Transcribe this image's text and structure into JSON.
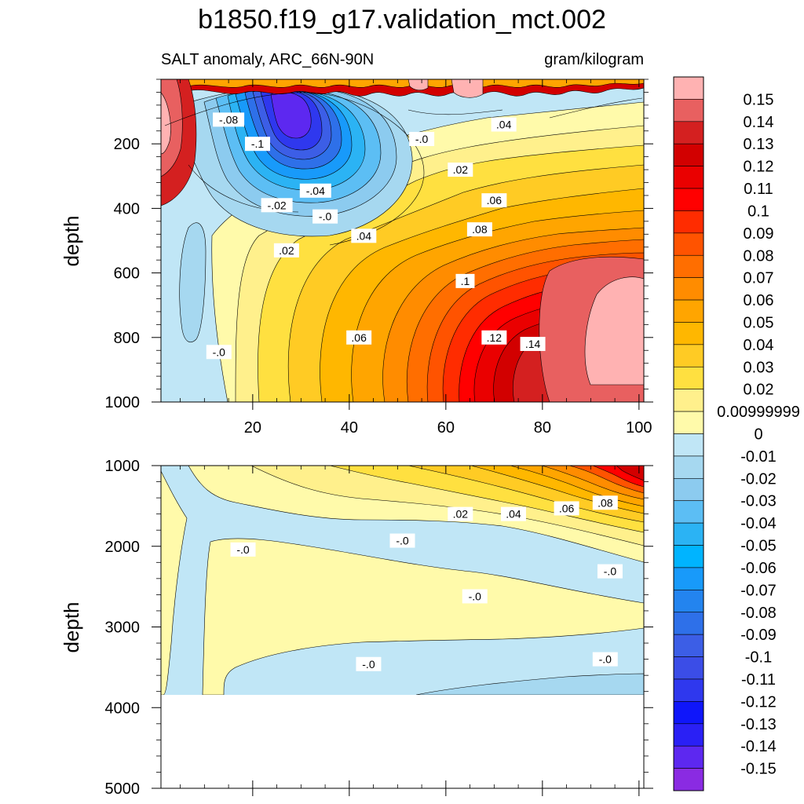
{
  "chart_data": {
    "type": "contour",
    "title": "b1850.f19_g17.validation_mct.002",
    "subtitle_left": "SALT anomaly, ARC_66N-90N",
    "subtitle_right": "gram/kilogram",
    "panels": [
      {
        "name": "upper",
        "ylabel": "depth",
        "xlim": [
          1,
          101
        ],
        "ylim": [
          1000,
          0
        ],
        "xticks": [
          20,
          40,
          60,
          80,
          100
        ],
        "xtick_labels": [
          "20",
          "40",
          "60",
          "80",
          "100"
        ],
        "yticks": [
          200,
          400,
          600,
          800,
          1000
        ],
        "ytick_labels": [
          "200",
          "400",
          "600",
          "800",
          "1000"
        ],
        "contour_labels": [
          {
            "text": "-.08",
            "x": 15,
            "y": 125
          },
          {
            "text": "-.1",
            "x": 21,
            "y": 200
          },
          {
            "text": "-.0",
            "x": 55,
            "y": 185
          },
          {
            "text": ".04",
            "x": 72,
            "y": 140
          },
          {
            "text": ".02",
            "x": 63,
            "y": 280
          },
          {
            "text": "-.04",
            "x": 33,
            "y": 345
          },
          {
            "text": "-.02",
            "x": 25,
            "y": 390
          },
          {
            "text": ".06",
            "x": 70,
            "y": 375
          },
          {
            "text": "-.0",
            "x": 35,
            "y": 425
          },
          {
            "text": ".08",
            "x": 67,
            "y": 465
          },
          {
            "text": ".04",
            "x": 43,
            "y": 485
          },
          {
            "text": ".02",
            "x": 27,
            "y": 530
          },
          {
            "text": ".1",
            "x": 64,
            "y": 625
          },
          {
            "text": ".06",
            "x": 42,
            "y": 800
          },
          {
            "text": ".12",
            "x": 70,
            "y": 800
          },
          {
            "text": ".14",
            "x": 78,
            "y": 820
          },
          {
            "text": "-.0",
            "x": 13,
            "y": 845
          }
        ]
      },
      {
        "name": "lower",
        "ylabel": "depth",
        "xlim": [
          1,
          101
        ],
        "ylim": [
          5000,
          1000
        ],
        "yticks": [
          1000,
          2000,
          3000,
          4000,
          5000
        ],
        "ytick_labels": [
          "1000",
          "2000",
          "3000",
          "4000",
          "5000"
        ],
        "contour_labels": [
          {
            "text": ".02",
            "x": 63,
            "y": 1600
          },
          {
            "text": ".04",
            "x": 74,
            "y": 1600
          },
          {
            "text": ".06",
            "x": 85,
            "y": 1530
          },
          {
            "text": ".08",
            "x": 93,
            "y": 1460
          },
          {
            "text": "-.0",
            "x": 18,
            "y": 2040
          },
          {
            "text": "-.0",
            "x": 51,
            "y": 1930
          },
          {
            "text": "-.0",
            "x": 94,
            "y": 2310
          },
          {
            "text": "-.0",
            "x": 66,
            "y": 2620
          },
          {
            "text": "-.0",
            "x": 44,
            "y": 3460
          },
          {
            "text": "-.0",
            "x": 93,
            "y": 3400
          }
        ]
      }
    ],
    "colorbar": {
      "labels": [
        "0.15",
        "0.14",
        "0.13",
        "0.12",
        "0.11",
        "0.1",
        "0.09",
        "0.08",
        "0.07",
        "0.06",
        "0.05",
        "0.04",
        "0.03",
        "0.02",
        "0.00999999",
        "0",
        "-0.01",
        "-0.02",
        "-0.03",
        "-0.04",
        "-0.05",
        "-0.06",
        "-0.07",
        "-0.08",
        "-0.09",
        "-0.1",
        "-0.11",
        "-0.12",
        "-0.13",
        "-0.14",
        "-0.15"
      ],
      "colors": [
        "#ffb2b2",
        "#e86060",
        "#d42020",
        "#d20000",
        "#ea0000",
        "#ff0000",
        "#ff2c00",
        "#ff5300",
        "#ff6e00",
        "#ff8c00",
        "#ffa500",
        "#ffb700",
        "#ffcb24",
        "#ffe040",
        "#fff08c",
        "#fffaaa",
        "#c0e6f6",
        "#a6d8f0",
        "#8ccbef",
        "#5cbef4",
        "#2bb3f4",
        "#00b4ff",
        "#189afa",
        "#2384ef",
        "#2e70e9",
        "#3c5ee6",
        "#3b4de7",
        "#2f38ee",
        "#0f16fa",
        "#2a20f5",
        "#5d28f0",
        "#8a2be2"
      ]
    }
  }
}
